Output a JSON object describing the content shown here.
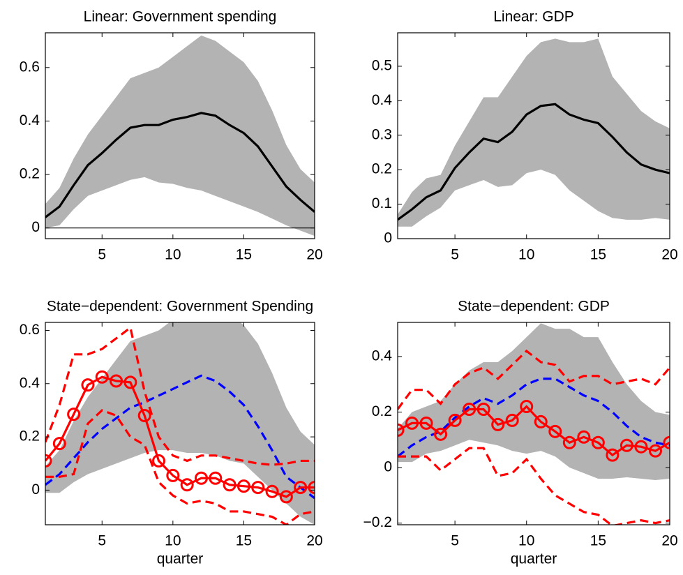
{
  "chart_data": [
    {
      "type": "line",
      "title": "Linear: Government spending",
      "x": [
        1,
        2,
        3,
        4,
        5,
        6,
        7,
        8,
        9,
        10,
        11,
        12,
        13,
        14,
        15,
        16,
        17,
        18,
        19,
        20
      ],
      "xlim": [
        1,
        20
      ],
      "xticks": [
        5,
        10,
        15,
        20
      ],
      "ylim": [
        -0.04,
        0.73
      ],
      "yticks": [
        0,
        0.2,
        0.4,
        0.6
      ],
      "reference_line": 0,
      "band": {
        "color": "#b3b3b3",
        "upper": [
          0.09,
          0.15,
          0.26,
          0.35,
          0.42,
          0.49,
          0.56,
          0.58,
          0.6,
          0.64,
          0.68,
          0.72,
          0.7,
          0.66,
          0.62,
          0.55,
          0.44,
          0.31,
          0.22,
          0.17
        ],
        "lower": [
          0.0,
          0.01,
          0.07,
          0.12,
          0.14,
          0.16,
          0.18,
          0.19,
          0.17,
          0.165,
          0.15,
          0.14,
          0.12,
          0.1,
          0.08,
          0.06,
          0.035,
          0.01,
          -0.01,
          -0.03
        ]
      },
      "series": [
        {
          "color": "#000000",
          "style": "solid",
          "values": [
            0.04,
            0.08,
            0.16,
            0.235,
            0.28,
            0.33,
            0.375,
            0.385,
            0.385,
            0.405,
            0.415,
            0.43,
            0.42,
            0.385,
            0.355,
            0.305,
            0.23,
            0.155,
            0.105,
            0.06
          ]
        }
      ]
    },
    {
      "type": "line",
      "title": "Linear: GDP",
      "x": [
        1,
        2,
        3,
        4,
        5,
        6,
        7,
        8,
        9,
        10,
        11,
        12,
        13,
        14,
        15,
        16,
        17,
        18,
        19,
        20
      ],
      "xlim": [
        1,
        20
      ],
      "xticks": [
        5,
        10,
        15,
        20
      ],
      "ylim": [
        0,
        0.597
      ],
      "yticks": [
        0,
        0.1,
        0.2,
        0.3,
        0.4,
        0.5
      ],
      "band": {
        "color": "#b3b3b3",
        "upper": [
          0.07,
          0.135,
          0.175,
          0.185,
          0.27,
          0.34,
          0.41,
          0.41,
          0.47,
          0.53,
          0.57,
          0.58,
          0.57,
          0.57,
          0.58,
          0.47,
          0.42,
          0.37,
          0.34,
          0.32
        ],
        "lower": [
          0.035,
          0.035,
          0.065,
          0.09,
          0.14,
          0.155,
          0.17,
          0.15,
          0.155,
          0.19,
          0.2,
          0.185,
          0.14,
          0.11,
          0.08,
          0.06,
          0.055,
          0.055,
          0.06,
          0.055
        ]
      },
      "series": [
        {
          "color": "#000000",
          "style": "solid",
          "values": [
            0.055,
            0.085,
            0.12,
            0.14,
            0.205,
            0.25,
            0.29,
            0.28,
            0.31,
            0.36,
            0.385,
            0.39,
            0.36,
            0.345,
            0.335,
            0.295,
            0.25,
            0.215,
            0.2,
            0.19
          ]
        }
      ]
    },
    {
      "type": "line",
      "title": "State−dependent: Government Spending",
      "x_label": "quarter",
      "x": [
        1,
        2,
        3,
        4,
        5,
        6,
        7,
        8,
        9,
        10,
        11,
        12,
        13,
        14,
        15,
        16,
        17,
        18,
        19,
        20
      ],
      "xlim": [
        1,
        20
      ],
      "xticks": [
        5,
        10,
        15,
        20
      ],
      "ylim": [
        -0.13,
        0.63
      ],
      "yticks": [
        0,
        0.2,
        0.4,
        0.6
      ],
      "band": {
        "color": "#b3b3b3",
        "upper": [
          0.09,
          0.15,
          0.26,
          0.35,
          0.42,
          0.49,
          0.56,
          0.58,
          0.6,
          0.64,
          0.68,
          0.72,
          0.7,
          0.66,
          0.62,
          0.55,
          0.44,
          0.31,
          0.22,
          0.17
        ],
        "lower": [
          -0.01,
          -0.01,
          0.03,
          0.06,
          0.08,
          0.1,
          0.12,
          0.14,
          0.15,
          0.15,
          0.14,
          0.14,
          0.13,
          0.11,
          0.1,
          0.05,
          0.0,
          -0.05,
          -0.1,
          -0.13
        ]
      },
      "series": [
        {
          "color": "#0000ff",
          "style": "dashed",
          "values": [
            0.02,
            0.06,
            0.12,
            0.18,
            0.23,
            0.27,
            0.31,
            0.33,
            0.355,
            0.38,
            0.405,
            0.43,
            0.41,
            0.37,
            0.32,
            0.24,
            0.15,
            0.05,
            0.01,
            -0.03
          ]
        },
        {
          "color": "#ff0000",
          "style": "dashed",
          "values": [
            0.18,
            0.32,
            0.51,
            0.51,
            0.53,
            0.57,
            0.61,
            0.37,
            0.2,
            0.13,
            0.11,
            0.13,
            0.13,
            0.12,
            0.11,
            0.1,
            0.095,
            0.1,
            0.11,
            0.11
          ]
        },
        {
          "color": "#ff0000",
          "style": "dashed",
          "values": [
            0.05,
            0.05,
            0.06,
            0.25,
            0.3,
            0.28,
            0.2,
            0.17,
            0.03,
            -0.02,
            -0.05,
            -0.04,
            -0.05,
            -0.08,
            -0.08,
            -0.09,
            -0.1,
            -0.13,
            -0.09,
            -0.08
          ]
        },
        {
          "color": "#ff0000",
          "style": "solid",
          "marker": "circle",
          "values": [
            0.11,
            0.175,
            0.285,
            0.395,
            0.425,
            0.41,
            0.405,
            0.28,
            0.11,
            0.055,
            0.02,
            0.045,
            0.045,
            0.02,
            0.015,
            0.01,
            -0.005,
            -0.025,
            0.01,
            0.01
          ]
        }
      ]
    },
    {
      "type": "line",
      "title": "State−dependent: GDP",
      "x_label": "quarter",
      "x": [
        1,
        2,
        3,
        4,
        5,
        6,
        7,
        8,
        9,
        10,
        11,
        12,
        13,
        14,
        15,
        16,
        17,
        18,
        19,
        20
      ],
      "xlim": [
        1,
        20
      ],
      "xticks": [
        5,
        10,
        15,
        20
      ],
      "ylim": [
        -0.206,
        0.523
      ],
      "yticks": [
        {
          "value": -0.2,
          "label": "−0.2"
        },
        0,
        0.2,
        0.4
      ],
      "band": {
        "color": "#b3b3b3",
        "upper": [
          0.14,
          0.2,
          0.22,
          0.24,
          0.3,
          0.35,
          0.38,
          0.38,
          0.42,
          0.47,
          0.52,
          0.5,
          0.5,
          0.47,
          0.47,
          0.38,
          0.3,
          0.24,
          0.2,
          0.19
        ],
        "lower": [
          0.02,
          0.02,
          0.05,
          0.06,
          0.08,
          0.1,
          0.09,
          0.08,
          0.06,
          0.05,
          0.06,
          0.04,
          0.0,
          -0.02,
          -0.04,
          -0.04,
          -0.035,
          -0.04,
          -0.045,
          -0.04
        ]
      },
      "series": [
        {
          "color": "#0000ff",
          "style": "dashed",
          "values": [
            0.04,
            0.08,
            0.11,
            0.13,
            0.18,
            0.22,
            0.25,
            0.23,
            0.26,
            0.3,
            0.32,
            0.32,
            0.29,
            0.26,
            0.24,
            0.2,
            0.15,
            0.11,
            0.09,
            0.08
          ]
        },
        {
          "color": "#ff0000",
          "style": "dashed",
          "values": [
            0.21,
            0.28,
            0.28,
            0.23,
            0.3,
            0.34,
            0.36,
            0.32,
            0.37,
            0.42,
            0.38,
            0.37,
            0.31,
            0.33,
            0.33,
            0.3,
            0.31,
            0.32,
            0.3,
            0.36
          ]
        },
        {
          "color": "#ff0000",
          "style": "dashed",
          "values": [
            0.04,
            0.04,
            0.04,
            -0.01,
            0.03,
            0.07,
            0.07,
            -0.03,
            -0.02,
            0.03,
            -0.04,
            -0.1,
            -0.13,
            -0.16,
            -0.17,
            -0.21,
            -0.2,
            -0.19,
            -0.2,
            -0.19
          ]
        },
        {
          "color": "#ff0000",
          "style": "solid",
          "marker": "circle",
          "values": [
            0.135,
            0.16,
            0.16,
            0.12,
            0.17,
            0.21,
            0.21,
            0.155,
            0.17,
            0.22,
            0.165,
            0.13,
            0.09,
            0.11,
            0.09,
            0.045,
            0.08,
            0.075,
            0.06,
            0.09
          ]
        }
      ]
    }
  ]
}
